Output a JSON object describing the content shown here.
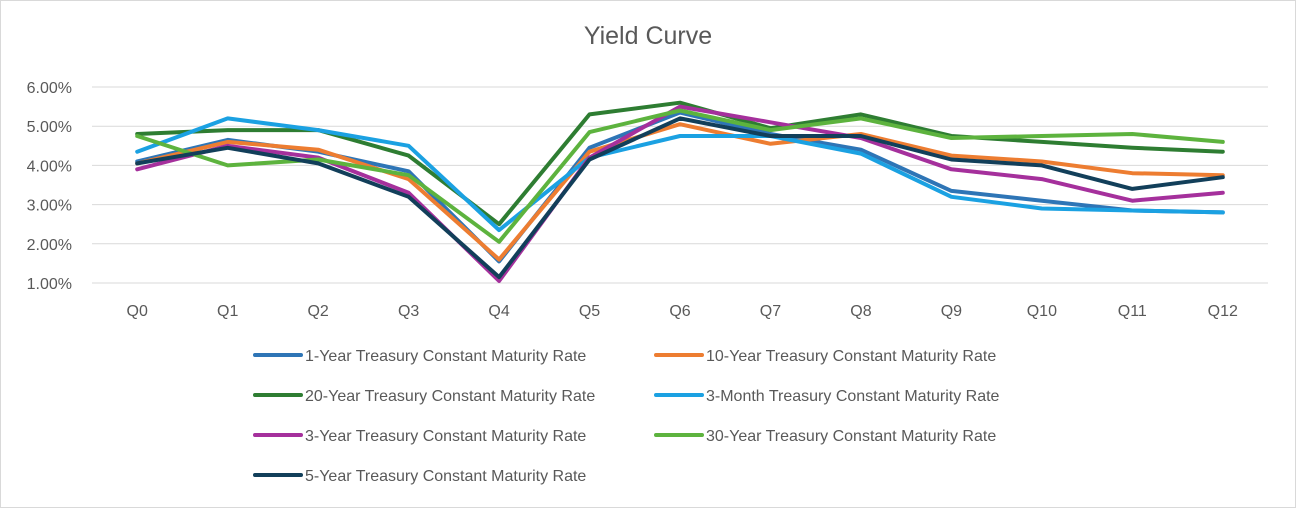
{
  "chart_data": {
    "type": "line",
    "title": "Yield Curve",
    "xlabel": "",
    "ylabel": "",
    "categories": [
      "Q0",
      "Q1",
      "Q2",
      "Q3",
      "Q4",
      "Q5",
      "Q6",
      "Q7",
      "Q8",
      "Q9",
      "Q10",
      "Q11",
      "Q12"
    ],
    "ylim": [
      1.0,
      6.0
    ],
    "yticks": [
      "1.00%",
      "2.00%",
      "3.00%",
      "4.00%",
      "5.00%",
      "6.00%"
    ],
    "grid": true,
    "legend_position": "bottom",
    "series": [
      {
        "name": "1-Year Treasury Constant Maturity Rate",
        "color": "#2E75B6",
        "values": [
          4.1,
          4.65,
          4.35,
          3.85,
          1.55,
          4.45,
          5.35,
          4.8,
          4.4,
          3.35,
          3.1,
          2.85,
          2.8
        ]
      },
      {
        "name": "10-Year Treasury Constant Maturity Rate",
        "color": "#ED7D31",
        "values": [
          4.05,
          4.6,
          4.4,
          3.65,
          1.6,
          4.35,
          5.05,
          4.55,
          4.8,
          4.25,
          4.1,
          3.8,
          3.75
        ]
      },
      {
        "name": "20-Year Treasury Constant Maturity Rate",
        "color": "#2E7D32",
        "values": [
          4.8,
          4.9,
          4.9,
          4.25,
          2.5,
          5.3,
          5.6,
          4.95,
          5.3,
          4.75,
          4.6,
          4.45,
          4.35
        ]
      },
      {
        "name": "3-Month Treasury Constant Maturity Rate",
        "color": "#1BA1E2",
        "values": [
          4.35,
          5.2,
          4.9,
          4.5,
          2.35,
          4.2,
          4.75,
          4.75,
          4.3,
          3.2,
          2.9,
          2.85,
          2.8
        ]
      },
      {
        "name": "3-Year Treasury Constant Maturity Rate",
        "color": "#A5309C",
        "values": [
          3.9,
          4.5,
          4.2,
          3.3,
          1.05,
          4.2,
          5.5,
          5.1,
          4.7,
          3.9,
          3.65,
          3.1,
          3.3
        ]
      },
      {
        "name": "30-Year Treasury Constant Maturity Rate",
        "color": "#5DB33E",
        "values": [
          4.75,
          4.0,
          4.15,
          3.75,
          2.05,
          4.85,
          5.4,
          4.9,
          5.2,
          4.7,
          4.75,
          4.8,
          4.6
        ]
      },
      {
        "name": "5-Year Treasury Constant Maturity Rate",
        "color": "#123F5A",
        "values": [
          4.05,
          4.45,
          4.05,
          3.2,
          1.15,
          4.15,
          5.2,
          4.75,
          4.75,
          4.15,
          4.0,
          3.4,
          3.7
        ]
      }
    ]
  }
}
